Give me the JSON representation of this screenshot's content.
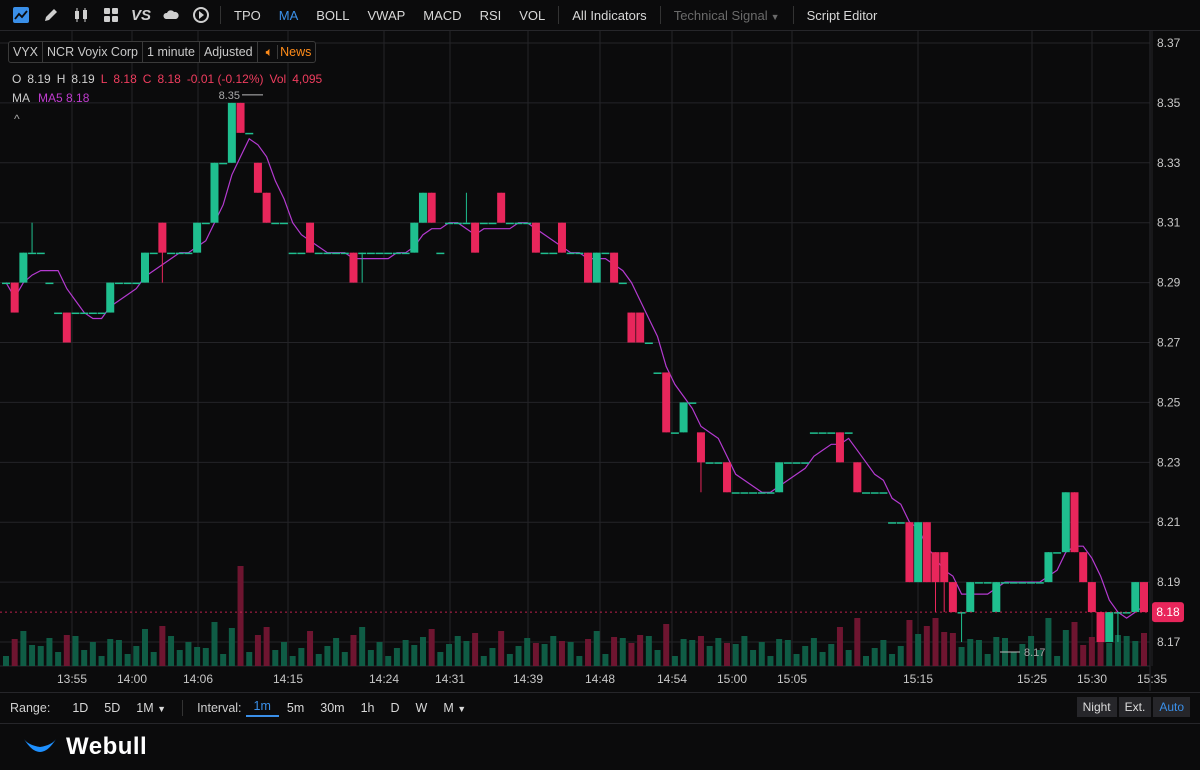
{
  "toolbar": {
    "icons": [
      "chart-type-icon",
      "draw-pen-icon",
      "candles-icon",
      "grid-layout-icon",
      "vs-compare-icon",
      "cloud-icon",
      "replay-icon"
    ],
    "vs_label": "VS",
    "indicators": [
      "TPO",
      "MA",
      "BOLL",
      "VWAP",
      "MACD",
      "RSI",
      "VOL"
    ],
    "active_indicator": "MA",
    "all_indicators": "All Indicators",
    "technical_signal": "Technical Signal",
    "script_editor": "Script Editor"
  },
  "symbol": {
    "ticker": "VYX",
    "name": "NCR Voyix Corp",
    "interval": "1 minute",
    "adjusted": "Adjusted",
    "news": "News"
  },
  "ohlc": {
    "o_label": "O",
    "o": "8.19",
    "h_label": "H",
    "h": "8.19",
    "l_label": "L",
    "l": "8.18",
    "c_label": "C",
    "c": "8.18",
    "change": "-0.01 (-0.12%)",
    "vol_label": "Vol",
    "vol": "4,095"
  },
  "ma": {
    "label": "MA",
    "ma5": "MA5 8.18"
  },
  "collapse_glyph": "^",
  "colors": {
    "up": "#1fbf8f",
    "down": "#e8265b",
    "ma": "#b43ad0",
    "grid": "#242428",
    "bg": "#0b0b0c",
    "accent": "#3a8fe8"
  },
  "chart_data": {
    "type": "candlestick",
    "y_ticks": [
      "8.37",
      "8.35",
      "8.33",
      "8.31",
      "8.29",
      "8.27",
      "8.25",
      "8.23",
      "8.21",
      "8.19",
      "8.17"
    ],
    "ylim": [
      8.162,
      8.374
    ],
    "x_ticks": [
      "13:55",
      "14:00",
      "14:06",
      "14:15",
      "14:24",
      "14:31",
      "14:39",
      "14:48",
      "14:54",
      "15:00",
      "15:05",
      "15:15",
      "15:25",
      "15:30",
      "15:35"
    ],
    "last_price": "8.18",
    "high_marker": "8.35",
    "low_marker": "8.17",
    "candles": [
      [
        8.29,
        8.29,
        8.29,
        8.29
      ],
      [
        8.29,
        8.29,
        8.28,
        8.28
      ],
      [
        8.29,
        8.3,
        8.29,
        8.3
      ],
      [
        8.3,
        8.31,
        8.3,
        8.3
      ],
      [
        8.3,
        8.3,
        8.3,
        8.3
      ],
      [
        8.29,
        8.29,
        8.29,
        8.29
      ],
      [
        8.28,
        8.28,
        8.28,
        8.28
      ],
      [
        8.28,
        8.28,
        8.27,
        8.27
      ],
      [
        8.28,
        8.28,
        8.28,
        8.28
      ],
      [
        8.28,
        8.28,
        8.28,
        8.28
      ],
      [
        8.28,
        8.28,
        8.28,
        8.28
      ],
      [
        8.28,
        8.28,
        8.28,
        8.28
      ],
      [
        8.28,
        8.29,
        8.28,
        8.29
      ],
      [
        8.29,
        8.29,
        8.29,
        8.29
      ],
      [
        8.29,
        8.29,
        8.29,
        8.29
      ],
      [
        8.29,
        8.29,
        8.29,
        8.29
      ],
      [
        8.29,
        8.3,
        8.29,
        8.3
      ],
      [
        8.3,
        8.3,
        8.3,
        8.3
      ],
      [
        8.31,
        8.31,
        8.29,
        8.3
      ],
      [
        8.3,
        8.3,
        8.3,
        8.3
      ],
      [
        8.3,
        8.3,
        8.3,
        8.3
      ],
      [
        8.3,
        8.3,
        8.3,
        8.3
      ],
      [
        8.3,
        8.31,
        8.3,
        8.31
      ],
      [
        8.31,
        8.31,
        8.31,
        8.31
      ],
      [
        8.31,
        8.33,
        8.31,
        8.33
      ],
      [
        8.33,
        8.33,
        8.33,
        8.33
      ],
      [
        8.33,
        8.35,
        8.33,
        8.35
      ],
      [
        8.35,
        8.35,
        8.34,
        8.34
      ],
      [
        8.34,
        8.34,
        8.34,
        8.34
      ],
      [
        8.33,
        8.33,
        8.32,
        8.32
      ],
      [
        8.32,
        8.32,
        8.31,
        8.31
      ],
      [
        8.31,
        8.31,
        8.31,
        8.31
      ],
      [
        8.31,
        8.31,
        8.31,
        8.31
      ],
      [
        8.3,
        8.3,
        8.3,
        8.3
      ],
      [
        8.3,
        8.3,
        8.3,
        8.3
      ],
      [
        8.31,
        8.31,
        8.3,
        8.3
      ],
      [
        8.3,
        8.3,
        8.3,
        8.3
      ],
      [
        8.3,
        8.3,
        8.3,
        8.3
      ],
      [
        8.3,
        8.3,
        8.3,
        8.3
      ],
      [
        8.3,
        8.3,
        8.3,
        8.3
      ],
      [
        8.3,
        8.3,
        8.29,
        8.29
      ],
      [
        8.3,
        8.3,
        8.29,
        8.3
      ],
      [
        8.3,
        8.3,
        8.3,
        8.3
      ],
      [
        8.3,
        8.3,
        8.3,
        8.3
      ],
      [
        8.3,
        8.3,
        8.3,
        8.3
      ],
      [
        8.3,
        8.3,
        8.3,
        8.3
      ],
      [
        8.3,
        8.3,
        8.3,
        8.3
      ],
      [
        8.3,
        8.31,
        8.3,
        8.31
      ],
      [
        8.31,
        8.32,
        8.31,
        8.32
      ],
      [
        8.32,
        8.32,
        8.31,
        8.31
      ],
      [
        8.3,
        8.3,
        8.3,
        8.3
      ],
      [
        8.31,
        8.31,
        8.31,
        8.31
      ],
      [
        8.31,
        8.31,
        8.31,
        8.31
      ],
      [
        8.31,
        8.32,
        8.31,
        8.31
      ],
      [
        8.31,
        8.31,
        8.3,
        8.3
      ],
      [
        8.31,
        8.31,
        8.31,
        8.31
      ],
      [
        8.31,
        8.31,
        8.31,
        8.31
      ],
      [
        8.32,
        8.32,
        8.31,
        8.31
      ],
      [
        8.31,
        8.31,
        8.31,
        8.31
      ],
      [
        8.31,
        8.31,
        8.31,
        8.31
      ],
      [
        8.31,
        8.31,
        8.31,
        8.31
      ],
      [
        8.31,
        8.31,
        8.3,
        8.3
      ],
      [
        8.3,
        8.3,
        8.3,
        8.3
      ],
      [
        8.3,
        8.3,
        8.3,
        8.3
      ],
      [
        8.31,
        8.31,
        8.3,
        8.3
      ],
      [
        8.3,
        8.3,
        8.3,
        8.3
      ],
      [
        8.3,
        8.3,
        8.3,
        8.3
      ],
      [
        8.3,
        8.3,
        8.29,
        8.29
      ],
      [
        8.29,
        8.3,
        8.29,
        8.3
      ],
      [
        8.3,
        8.3,
        8.3,
        8.3
      ],
      [
        8.3,
        8.3,
        8.29,
        8.29
      ],
      [
        8.29,
        8.29,
        8.29,
        8.29
      ],
      [
        8.28,
        8.28,
        8.27,
        8.27
      ],
      [
        8.28,
        8.28,
        8.27,
        8.27
      ],
      [
        8.27,
        8.27,
        8.27,
        8.27
      ],
      [
        8.26,
        8.26,
        8.26,
        8.26
      ],
      [
        8.26,
        8.26,
        8.24,
        8.24
      ],
      [
        8.24,
        8.24,
        8.24,
        8.24
      ],
      [
        8.24,
        8.25,
        8.24,
        8.25
      ],
      [
        8.25,
        8.25,
        8.25,
        8.25
      ],
      [
        8.24,
        8.24,
        8.22,
        8.23
      ],
      [
        8.23,
        8.23,
        8.23,
        8.23
      ],
      [
        8.23,
        8.23,
        8.23,
        8.23
      ],
      [
        8.23,
        8.23,
        8.22,
        8.22
      ],
      [
        8.22,
        8.22,
        8.22,
        8.22
      ],
      [
        8.22,
        8.22,
        8.22,
        8.22
      ],
      [
        8.22,
        8.22,
        8.22,
        8.22
      ],
      [
        8.22,
        8.22,
        8.22,
        8.22
      ],
      [
        8.22,
        8.22,
        8.22,
        8.22
      ],
      [
        8.22,
        8.23,
        8.22,
        8.23
      ],
      [
        8.23,
        8.23,
        8.23,
        8.23
      ],
      [
        8.23,
        8.23,
        8.23,
        8.23
      ],
      [
        8.23,
        8.23,
        8.23,
        8.23
      ],
      [
        8.24,
        8.24,
        8.24,
        8.24
      ],
      [
        8.24,
        8.24,
        8.24,
        8.24
      ],
      [
        8.24,
        8.24,
        8.24,
        8.24
      ],
      [
        8.24,
        8.24,
        8.23,
        8.23
      ],
      [
        8.24,
        8.24,
        8.24,
        8.24
      ],
      [
        8.23,
        8.23,
        8.22,
        8.22
      ],
      [
        8.22,
        8.22,
        8.22,
        8.22
      ],
      [
        8.22,
        8.22,
        8.22,
        8.22
      ],
      [
        8.22,
        8.22,
        8.22,
        8.22
      ],
      [
        8.21,
        8.21,
        8.21,
        8.21
      ],
      [
        8.21,
        8.21,
        8.21,
        8.21
      ],
      [
        8.21,
        8.21,
        8.19,
        8.19
      ],
      [
        8.19,
        8.21,
        8.19,
        8.21
      ],
      [
        8.21,
        8.21,
        8.19,
        8.19
      ],
      [
        8.2,
        8.2,
        8.18,
        8.19
      ],
      [
        8.2,
        8.2,
        8.18,
        8.19
      ],
      [
        8.19,
        8.19,
        8.18,
        8.18
      ],
      [
        8.18,
        8.18,
        8.17,
        8.18
      ],
      [
        8.18,
        8.19,
        8.18,
        8.19
      ],
      [
        8.19,
        8.19,
        8.19,
        8.19
      ],
      [
        8.19,
        8.19,
        8.19,
        8.19
      ],
      [
        8.18,
        8.19,
        8.18,
        8.19
      ],
      [
        8.19,
        8.19,
        8.19,
        8.19
      ],
      [
        8.19,
        8.19,
        8.19,
        8.19
      ],
      [
        8.19,
        8.19,
        8.19,
        8.19
      ],
      [
        8.19,
        8.19,
        8.19,
        8.19
      ],
      [
        8.19,
        8.19,
        8.19,
        8.19
      ],
      [
        8.19,
        8.2,
        8.19,
        8.2
      ],
      [
        8.2,
        8.2,
        8.2,
        8.2
      ],
      [
        8.2,
        8.22,
        8.2,
        8.22
      ],
      [
        8.22,
        8.22,
        8.2,
        8.2
      ],
      [
        8.2,
        8.2,
        8.19,
        8.19
      ],
      [
        8.19,
        8.19,
        8.18,
        8.18
      ],
      [
        8.18,
        8.18,
        8.17,
        8.17
      ],
      [
        8.17,
        8.18,
        8.17,
        8.18
      ],
      [
        8.18,
        8.18,
        8.17,
        8.18
      ],
      [
        8.18,
        8.18,
        8.18,
        8.18
      ],
      [
        8.18,
        8.19,
        8.18,
        8.19
      ],
      [
        8.19,
        8.19,
        8.18,
        8.18
      ]
    ],
    "volume": [],
    "ma5": []
  },
  "bottombar": {
    "range_label": "Range:",
    "ranges": [
      "1D",
      "5D",
      "1M"
    ],
    "interval_label": "Interval:",
    "intervals": [
      "1m",
      "5m",
      "30m",
      "1h",
      "D",
      "W",
      "M"
    ],
    "active_interval": "1m",
    "sessions": [
      "Night",
      "Ext.",
      "Auto"
    ],
    "active_session": "Auto"
  },
  "footer": {
    "brand": "Webull"
  }
}
